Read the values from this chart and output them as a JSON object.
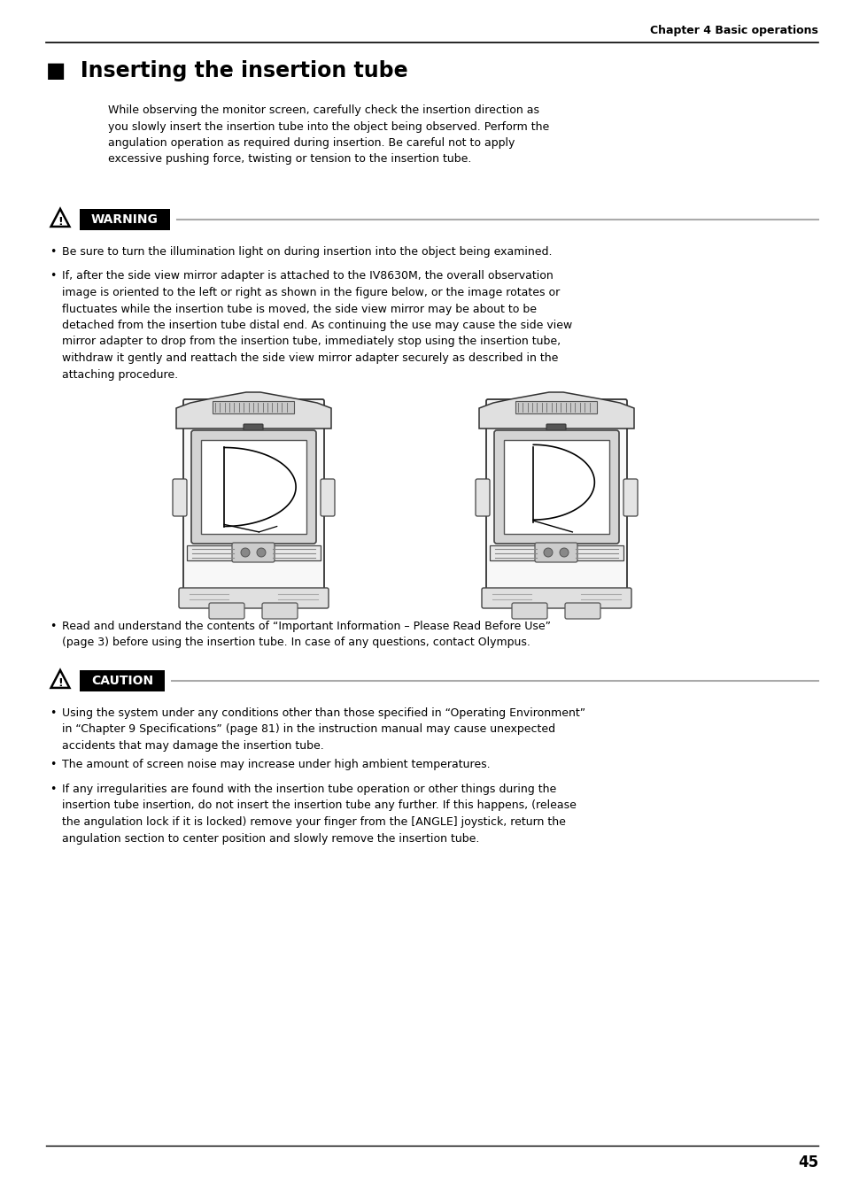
{
  "bg_color": "#ffffff",
  "page_width": 9.54,
  "page_height": 13.52,
  "dpi": 100,
  "chapter_header": "Chapter 4 Basic operations",
  "section_title": "■  Inserting the insertion tube",
  "intro_text": "While observing the monitor screen, carefully check the insertion direction as\nyou slowly insert the insertion tube into the object being observed. Perform the\nangulation operation as required during insertion. Be careful not to apply\nexcessive pushing force, twisting or tension to the insertion tube.",
  "warning_label": "WARNING",
  "warning_bullets": [
    "Be sure to turn the illumination light on during insertion into the object being examined.",
    "If, after the side view mirror adapter is attached to the IV8630M, the overall observation\nimage is oriented to the left or right as shown in the figure below, or the image rotates or\nfluctuates while the insertion tube is moved, the side view mirror may be about to be\ndetached from the insertion tube distal end. As continuing the use may cause the side view\nmirror adapter to drop from the insertion tube, immediately stop using the insertion tube,\nwithdraw it gently and reattach the side view mirror adapter securely as described in the\nattaching procedure."
  ],
  "read_bullet": "Read and understand the contents of “Important Information – Please Read Before Use”\n(page 3) before using the insertion tube. In case of any questions, contact Olympus.",
  "caution_label": "CAUTION",
  "caution_bullets": [
    "Using the system under any conditions other than those specified in “Operating Environment”\nin “Chapter 9 Specifications” (page 81) in the instruction manual may cause unexpected\naccidents that may damage the insertion tube.",
    "The amount of screen noise may increase under high ambient temperatures.",
    "If any irregularities are found with the insertion tube operation or other things during the\ninsertion tube insertion, do not insert the insertion tube any further. If this happens, (release\nthe angulation lock if it is locked) remove your finger from the [ANGLE] joystick, return the\nangulation section to center position and slowly remove the insertion tube."
  ],
  "page_number": "45"
}
